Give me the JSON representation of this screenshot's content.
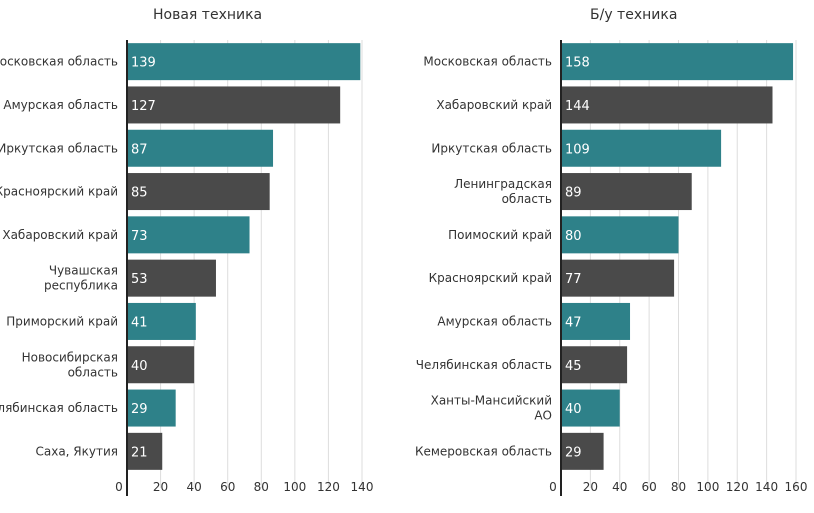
{
  "chart_data": [
    {
      "type": "bar",
      "orientation": "horizontal",
      "title": "Новая техника",
      "categories": [
        [
          "Московская область"
        ],
        [
          "Амурская область"
        ],
        [
          "Иркутская область"
        ],
        [
          "Красноярский край"
        ],
        [
          "Хабаровский край"
        ],
        [
          "Чувашская",
          "республика"
        ],
        [
          "Приморский край"
        ],
        [
          "Новосибирская",
          "область"
        ],
        [
          "Челябинская область"
        ],
        [
          "Саха, Якутия"
        ]
      ],
      "values": [
        139,
        127,
        87,
        85,
        73,
        53,
        41,
        40,
        29,
        21
      ],
      "xlim": [
        0,
        140
      ],
      "xticks": [
        0,
        20,
        40,
        60,
        80,
        100,
        120,
        140
      ],
      "grid": true,
      "colors": [
        "#2e8189",
        "#4a4a4a"
      ]
    },
    {
      "type": "bar",
      "orientation": "horizontal",
      "title": "Б/у техника",
      "categories": [
        [
          "Московская область"
        ],
        [
          "Хабаровский край"
        ],
        [
          "Иркутская область"
        ],
        [
          "Ленинградская",
          "область"
        ],
        [
          "Поимоский край"
        ],
        [
          "Красноярский край"
        ],
        [
          "Амурская область"
        ],
        [
          "Челябинская область"
        ],
        [
          "Ханты-Мансийский",
          "АО"
        ],
        [
          "Кемеровская область"
        ]
      ],
      "values": [
        158,
        144,
        109,
        89,
        80,
        77,
        47,
        45,
        40,
        29
      ],
      "xlim": [
        0,
        160
      ],
      "xticks": [
        0,
        20,
        40,
        60,
        80,
        100,
        120,
        140,
        160
      ],
      "grid": true,
      "colors": [
        "#2e8189",
        "#4a4a4a"
      ]
    }
  ]
}
